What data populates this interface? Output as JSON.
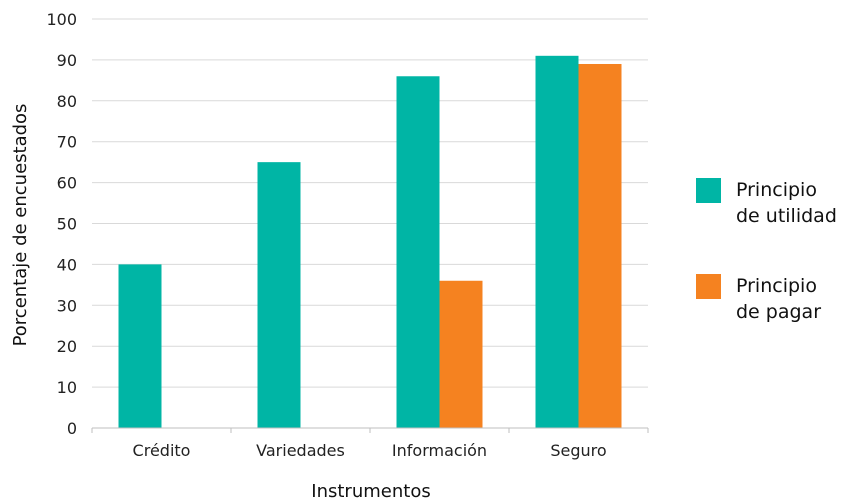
{
  "chart_data": {
    "type": "bar",
    "categories": [
      "Crédito",
      "Variedades",
      "Información",
      "Seguro"
    ],
    "series": [
      {
        "name": "Principio de utilidad",
        "legend_lines": [
          "Principio",
          "de utilidad"
        ],
        "color": "#00b5a5",
        "values": [
          40,
          65,
          86,
          91
        ]
      },
      {
        "name": "Principio de pagar",
        "legend_lines": [
          "Principio",
          "de pagar"
        ],
        "color": "#f58220",
        "values": [
          null,
          null,
          36,
          89
        ]
      }
    ],
    "xlabel": "Instrumentos",
    "ylabel": "Porcentaje de encuestados",
    "ylim": [
      0,
      100
    ],
    "yticks": [
      0,
      10,
      20,
      30,
      40,
      50,
      60,
      70,
      80,
      90,
      100
    ],
    "grid": true,
    "legend_position": "right"
  }
}
